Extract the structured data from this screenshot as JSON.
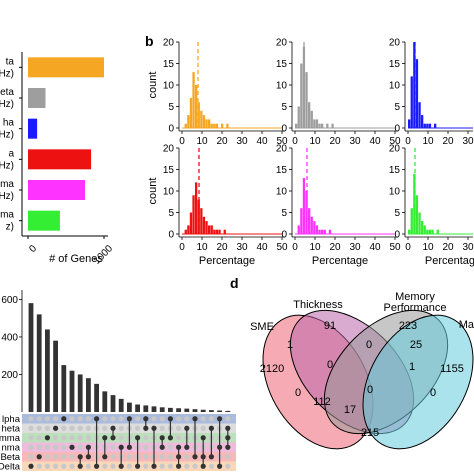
{
  "panel_labels": [
    "b",
    "d"
  ],
  "chart_data": [
    {
      "type": "bar",
      "orientation": "horizontal",
      "categories": [
        "ta\nHz)",
        "eta\nHz)",
        "ha\nHz)",
        "a\nHz)",
        "mma\nHz)",
        "mma\nz)"
      ],
      "values": [
        1000,
        230,
        120,
        830,
        750,
        420
      ],
      "colors": [
        "#f5a623",
        "#9e9e9e",
        "#1a1aff",
        "#ee1111",
        "#ff33ff",
        "#33ee33"
      ],
      "xlabel": "# of Genes",
      "xticks": [
        "0",
        "1000"
      ],
      "xlim": [
        0,
        1000
      ]
    },
    {
      "type": "histogram-grid",
      "ylabel": "count",
      "xlabel": "Percentage",
      "xticks": [
        "0",
        "10",
        "20",
        "30",
        "40",
        "50"
      ],
      "yticks": [
        "0",
        "5",
        "10",
        "15",
        "20"
      ],
      "xlim": [
        0,
        50
      ],
      "ylim": [
        0,
        20
      ],
      "bin_width": 1.3,
      "panels": [
        {
          "color": "#f5a623",
          "mean_line": 8,
          "counts": [
            0,
            1,
            3,
            7,
            13,
            10,
            6,
            4,
            3,
            2,
            2,
            1,
            1,
            1,
            0,
            1,
            0,
            1
          ]
        },
        {
          "color": "#9e9e9e",
          "mean_line": 4.5,
          "counts": [
            1,
            5,
            15,
            19,
            13,
            6,
            4,
            2,
            2,
            1,
            1,
            0,
            1,
            0,
            1
          ]
        },
        {
          "color": "#1a1aff",
          "mean_line": 3.5,
          "counts": [
            2,
            12,
            20,
            16,
            6,
            3,
            1,
            1,
            1,
            0,
            1
          ]
        },
        {
          "color": "#ee1111",
          "mean_line": 8.5,
          "counts": [
            0,
            1,
            2,
            5,
            9,
            12,
            8,
            6,
            4,
            3,
            2,
            2,
            1,
            1,
            1,
            0,
            1
          ]
        },
        {
          "color": "#ff33ff",
          "mean_line": 6,
          "counts": [
            0,
            2,
            6,
            13,
            10,
            6,
            4,
            3,
            2,
            1,
            1,
            1,
            0,
            1
          ]
        },
        {
          "color": "#33ee33",
          "mean_line": 3.5,
          "counts": [
            1,
            6,
            14,
            9,
            5,
            3,
            2,
            1,
            1,
            1,
            0,
            1
          ]
        }
      ]
    },
    {
      "type": "bar",
      "subtype": "upset",
      "yticks": [
        "600",
        "400",
        "200"
      ],
      "ylim": [
        0,
        650
      ],
      "values": [
        580,
        520,
        440,
        380,
        250,
        220,
        200,
        180,
        150,
        110,
        90,
        70,
        50,
        40,
        35,
        30,
        25,
        22,
        20,
        18,
        15,
        12,
        10,
        8,
        6
      ],
      "set_labels": [
        "lpha",
        "heta",
        "mma",
        "nma",
        "Beta",
        "Delta"
      ],
      "set_colors": [
        "#aabbdd",
        "#dddddd",
        "#bbe0bb",
        "#eebbdd",
        "#f7b8b8",
        "#f8d8b8"
      ],
      "membership": [
        [
          5
        ],
        [
          4
        ],
        [
          2
        ],
        [
          1
        ],
        [
          0
        ],
        [
          3
        ],
        [
          4,
          5
        ],
        [
          3,
          4
        ],
        [
          0,
          5
        ],
        [
          2,
          4
        ],
        [
          1,
          2
        ],
        [
          3,
          5
        ],
        [
          0,
          3
        ],
        [
          2,
          5
        ],
        [
          0,
          1
        ],
        [
          1,
          5
        ],
        [
          2,
          3
        ],
        [
          0,
          2
        ],
        [
          3,
          4,
          5
        ],
        [
          1,
          3
        ],
        [
          0,
          4
        ],
        [
          2,
          4,
          5
        ],
        [
          1,
          4
        ],
        [
          0,
          3,
          5
        ],
        [
          1,
          2,
          3
        ]
      ]
    },
    {
      "type": "venn",
      "sets": [
        "SME",
        "Thickness",
        "Memory\nPerformance",
        "Ma"
      ],
      "colors": [
        "#ee6677",
        "#bb66aa",
        "#999999",
        "#66ccdd"
      ],
      "region_values": {
        "sme_only": "2120",
        "thickness_only": "91",
        "memory_only": "223",
        "ma_only": "1155",
        "sme_thickness": "1",
        "thickness_memory": "0",
        "memory_ma": "25",
        "sme_memory": "0",
        "thickness_ma": "0",
        "sme_thickness_memory": "0",
        "thickness_memory_ma": "1",
        "sme_ma": "215",
        "sme_thickness_ma": "112",
        "sme_memory_ma": "17",
        "all": "0"
      }
    }
  ]
}
